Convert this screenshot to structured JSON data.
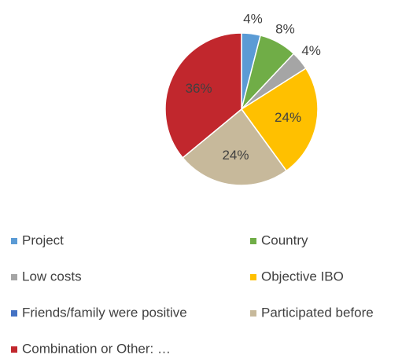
{
  "chart_data": {
    "type": "pie",
    "categories": [
      "Project",
      "Country",
      "Low costs",
      "Objective IBO",
      "Friends/family were positive",
      "Participated before",
      "Combination or Other: …"
    ],
    "values": [
      4,
      8,
      4,
      24,
      0,
      24,
      36
    ],
    "value_labels": [
      "4%",
      "8%",
      "4%",
      "24%",
      null,
      "24%",
      "36%"
    ],
    "colors": [
      "#5b9bd5",
      "#70ad47",
      "#a5a5a5",
      "#ffc000",
      "#4472c4",
      "#c7b99b",
      "#c1272d"
    ],
    "legend": "bottom"
  }
}
